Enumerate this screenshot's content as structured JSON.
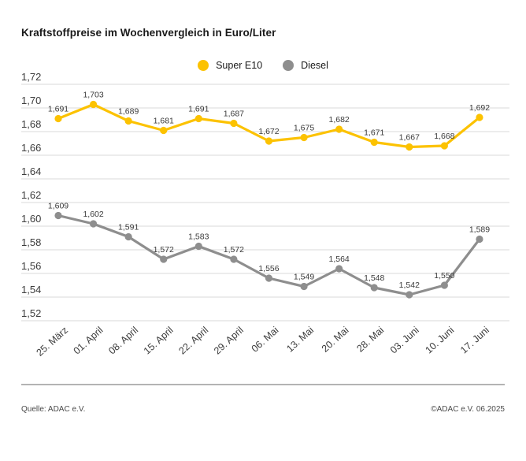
{
  "title": "Kraftstoffpreise im Wochenvergleich in Euro/Liter",
  "footer": {
    "source": "Quelle: ADAC e.V.",
    "copyright": "©ADAC e.V. 06.2025"
  },
  "colors": {
    "super_e10": "#fcc200",
    "diesel": "#8e8e8e",
    "grid": "#d8d8d8",
    "axis_text": "#3c3c3c",
    "data_label_text": "#3a3a3a",
    "divider": "#b3b3b3"
  },
  "chart_data": {
    "type": "line",
    "title": "Kraftstoffpreise im Wochenvergleich in Euro/Liter",
    "unit": "Euro/Liter",
    "categories": [
      "25. März",
      "01. April",
      "08. April",
      "15. April",
      "22. April",
      "29. April",
      "06. Mai",
      "13. Mai",
      "20. Mai",
      "28. Mai",
      "03. Juni",
      "10. Juni",
      "17. Juni"
    ],
    "series": [
      {
        "name": "Super E10",
        "color": "#fcc200",
        "values": [
          1.691,
          1.703,
          1.689,
          1.681,
          1.691,
          1.687,
          1.672,
          1.675,
          1.682,
          1.671,
          1.667,
          1.668,
          1.692
        ],
        "labels": [
          "1,691",
          "1,703",
          "1,689",
          "1,681",
          "1,691",
          "1,687",
          "1,672",
          "1,675",
          "1,682",
          "1,671",
          "1,667",
          "1,668",
          "1,692"
        ]
      },
      {
        "name": "Diesel",
        "color": "#8e8e8e",
        "values": [
          1.609,
          1.602,
          1.591,
          1.572,
          1.583,
          1.572,
          1.556,
          1.549,
          1.564,
          1.548,
          1.542,
          1.55,
          1.589
        ],
        "labels": [
          "1,609",
          "1,602",
          "1,591",
          "1,572",
          "1,583",
          "1,572",
          "1,556",
          "1,549",
          "1,564",
          "1,548",
          "1,542",
          "1,550",
          "1,589"
        ]
      }
    ],
    "ylim": [
      1.52,
      1.72
    ],
    "ytick_step": 0.02,
    "y_ticks": [
      "1,72",
      "1,70",
      "1,68",
      "1,66",
      "1,64",
      "1,62",
      "1,60",
      "1,58",
      "1,56",
      "1,54",
      "1,52"
    ],
    "grid": true,
    "legend_position": "top-center"
  }
}
